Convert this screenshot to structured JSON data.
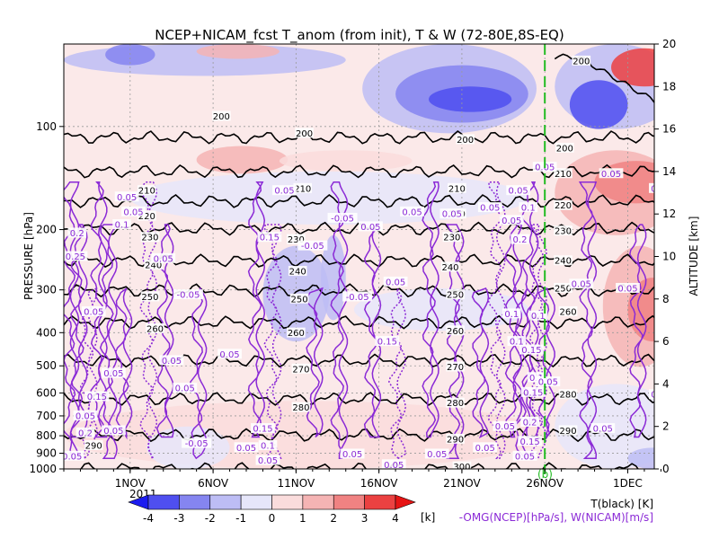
{
  "chart_data": {
    "type": "heatmap",
    "title": "NCEP+NICAM_fcst T_anom (from init), T & W  (72-80E,8S-EQ)",
    "ylabel": "PRESSURE [hPa]",
    "ylabel_right": "ALTITUDE [km]",
    "x_ticks": [
      "1NOV",
      "6NOV",
      "11NOV",
      "16NOV",
      "21NOV",
      "26NOV",
      "1DEC"
    ],
    "x_year": "2011",
    "x_day_range": [
      28,
      60
    ],
    "x_tick_days": [
      32,
      37,
      42,
      47,
      52,
      57,
      62
    ],
    "forecast_start_day": 57.0,
    "y_pressure_ticks": [
      100,
      200,
      300,
      400,
      500,
      600,
      700,
      800,
      900,
      1000
    ],
    "y_pressure_tick_labels": [
      "100",
      "200",
      "300",
      "400",
      "500",
      "600",
      "700",
      "800",
      "900",
      "1000"
    ],
    "y_altitude_ticks": [
      0,
      2,
      4,
      6,
      8,
      10,
      12,
      14,
      16,
      18,
      20
    ],
    "y_altitude_range": [
      0,
      20
    ],
    "colorbar": {
      "levels": [
        -4,
        -3,
        -2,
        -1,
        0,
        1,
        2,
        3,
        4
      ],
      "tick_labels": [
        "-4",
        "-3",
        "-2",
        "-1",
        "0",
        "1",
        "2",
        "3",
        "4"
      ],
      "colors": [
        "#1c1cf0",
        "#4f4ff0",
        "#8585f0",
        "#bdbdf5",
        "#e6e6fa",
        "#fadcdc",
        "#f5b4b4",
        "#f08282",
        "#eb4141",
        "#e61414"
      ],
      "unit": "[k]"
    },
    "legend": {
      "temp": "T(black) [K]",
      "wind": "-OMG(NCEP)[hPa/s], W(NICAM)[m/s]",
      "mark": "(b)"
    },
    "temperature_contours": [
      {
        "value": 200,
        "alt": 15.6,
        "label": "200"
      },
      {
        "value": 210,
        "alt": 14.0,
        "label": "210"
      },
      {
        "value": 220,
        "alt": 12.6,
        "label": "220"
      },
      {
        "value": 230,
        "alt": 11.3,
        "label": "230"
      },
      {
        "value": 240,
        "alt": 9.8,
        "label": "240"
      },
      {
        "value": 250,
        "alt": 8.4,
        "label": "250"
      },
      {
        "value": 260,
        "alt": 6.9,
        "label": "260"
      },
      {
        "value": 270,
        "alt": 5.1,
        "label": "270"
      },
      {
        "value": 280,
        "alt": 3.3,
        "label": "280"
      },
      {
        "value": 290,
        "alt": 1.6,
        "label": "290"
      },
      {
        "value": 300,
        "alt": 0.0,
        "label": "300"
      }
    ],
    "temperature_contour_labels": [
      {
        "text": "200",
        "day": 37.5,
        "alt": 16.6
      },
      {
        "text": "200",
        "day": 42.5,
        "alt": 15.8
      },
      {
        "text": "200",
        "day": 52.2,
        "alt": 15.5
      },
      {
        "text": "200",
        "day": 58.2,
        "alt": 15.1
      },
      {
        "text": "200",
        "day": 59.2,
        "alt": 19.2
      },
      {
        "text": "210",
        "day": 33.0,
        "alt": 13.1
      },
      {
        "text": "210",
        "day": 42.4,
        "alt": 13.2
      },
      {
        "text": "210",
        "day": 51.7,
        "alt": 13.2
      },
      {
        "text": "210",
        "day": 58.1,
        "alt": 13.9
      },
      {
        "text": "220",
        "day": 33.0,
        "alt": 11.9
      },
      {
        "text": "220",
        "day": 51.7,
        "alt": 12.0
      },
      {
        "text": "220",
        "day": 58.1,
        "alt": 12.4
      },
      {
        "text": "230",
        "day": 33.2,
        "alt": 10.9
      },
      {
        "text": "230",
        "day": 42.0,
        "alt": 10.8
      },
      {
        "text": "230",
        "day": 51.4,
        "alt": 10.9
      },
      {
        "text": "230",
        "day": 58.1,
        "alt": 11.2
      },
      {
        "text": "240",
        "day": 33.4,
        "alt": 9.6
      },
      {
        "text": "240",
        "day": 42.1,
        "alt": 9.3
      },
      {
        "text": "240",
        "day": 51.3,
        "alt": 9.5
      },
      {
        "text": "240",
        "day": 58.1,
        "alt": 9.8
      },
      {
        "text": "250",
        "day": 33.2,
        "alt": 8.1
      },
      {
        "text": "250",
        "day": 42.2,
        "alt": 8.0
      },
      {
        "text": "250",
        "day": 51.6,
        "alt": 8.2
      },
      {
        "text": "250",
        "day": 58.1,
        "alt": 8.5
      },
      {
        "text": "260",
        "day": 33.5,
        "alt": 6.6
      },
      {
        "text": "260",
        "day": 42.0,
        "alt": 6.4
      },
      {
        "text": "260",
        "day": 51.6,
        "alt": 6.5
      },
      {
        "text": "260",
        "day": 58.4,
        "alt": 7.4
      },
      {
        "text": "270",
        "day": 42.3,
        "alt": 4.7
      },
      {
        "text": "270",
        "day": 51.6,
        "alt": 4.8
      },
      {
        "text": "280",
        "day": 42.3,
        "alt": 2.9
      },
      {
        "text": "280",
        "day": 51.6,
        "alt": 3.1
      },
      {
        "text": "280",
        "day": 58.4,
        "alt": 3.5
      },
      {
        "text": "290",
        "day": 29.8,
        "alt": 1.1
      },
      {
        "text": "290",
        "day": 51.6,
        "alt": 1.4
      },
      {
        "text": "290",
        "day": 58.4,
        "alt": 1.8
      },
      {
        "text": "300",
        "day": 52.0,
        "alt": 0.1
      }
    ],
    "wind_contour_labels": [
      {
        "text": "0.05",
        "day": 31.8,
        "alt": 12.8
      },
      {
        "text": "0.05",
        "day": 32.2,
        "alt": 12.1
      },
      {
        "text": "0.1",
        "day": 31.5,
        "alt": 11.5
      },
      {
        "text": "0.2",
        "day": 28.8,
        "alt": 11.1
      },
      {
        "text": "0.25",
        "day": 28.7,
        "alt": 10.0
      },
      {
        "text": "0.05",
        "day": 29.8,
        "alt": 7.4
      },
      {
        "text": "0.05",
        "day": 34.0,
        "alt": 9.9
      },
      {
        "text": "-0.05",
        "day": 35.5,
        "alt": 8.2
      },
      {
        "text": "0.05",
        "day": 41.3,
        "alt": 13.1
      },
      {
        "text": "0.15",
        "day": 40.4,
        "alt": 10.9
      },
      {
        "text": "-0.05",
        "day": 43.0,
        "alt": 10.5
      },
      {
        "text": "-0.05",
        "day": 44.8,
        "alt": 11.8
      },
      {
        "text": "0.05",
        "day": 46.5,
        "alt": 11.4
      },
      {
        "text": "0.05",
        "day": 49.0,
        "alt": 12.1
      },
      {
        "text": "0.05",
        "day": 51.4,
        "alt": 12.0
      },
      {
        "text": "0.05",
        "day": 53.7,
        "alt": 12.3
      },
      {
        "text": "0.05",
        "day": 55.4,
        "alt": 13.1
      },
      {
        "text": "0.05",
        "day": 57.0,
        "alt": 14.2
      },
      {
        "text": "-0.05",
        "day": 45.7,
        "alt": 8.1
      },
      {
        "text": "0.05",
        "day": 48.0,
        "alt": 8.8
      },
      {
        "text": "0.05",
        "day": 38.0,
        "alt": 5.4
      },
      {
        "text": "0.05",
        "day": 34.5,
        "alt": 5.1
      },
      {
        "text": "0.05",
        "day": 31.0,
        "alt": 4.5
      },
      {
        "text": "0.05",
        "day": 35.3,
        "alt": 3.8
      },
      {
        "text": "0.15",
        "day": 30.0,
        "alt": 3.4
      },
      {
        "text": "0.15",
        "day": 47.5,
        "alt": 6.0
      },
      {
        "text": "0.05",
        "day": 39.0,
        "alt": 1.0
      },
      {
        "text": "-0.05",
        "day": 36.0,
        "alt": 1.2
      },
      {
        "text": "0.15",
        "day": 40.0,
        "alt": 1.9
      },
      {
        "text": "0.1",
        "day": 40.3,
        "alt": 1.1
      },
      {
        "text": "0.05",
        "day": 40.3,
        "alt": 0.4
      },
      {
        "text": "0.05",
        "day": 45.4,
        "alt": 0.7
      },
      {
        "text": "0.05",
        "day": 47.9,
        "alt": 0.2
      },
      {
        "text": "0.05",
        "day": 50.5,
        "alt": 0.7
      },
      {
        "text": "0.05",
        "day": 53.4,
        "alt": 1.0
      },
      {
        "text": "0.05",
        "day": 54.6,
        "alt": 2.0
      },
      {
        "text": "0.2",
        "day": 56.1,
        "alt": 2.2
      },
      {
        "text": "0.15",
        "day": 56.1,
        "alt": 1.3
      },
      {
        "text": "0.05",
        "day": 55.8,
        "alt": 0.6
      },
      {
        "text": "0.1",
        "day": 55.3,
        "alt": 6.0
      },
      {
        "text": "0.15",
        "day": 56.2,
        "alt": 5.6
      },
      {
        "text": "0.1",
        "day": 56.5,
        "alt": 4.3
      },
      {
        "text": "0.15",
        "day": 56.3,
        "alt": 3.6
      },
      {
        "text": "0.05",
        "day": 57.2,
        "alt": 4.1
      },
      {
        "text": "0.05",
        "day": 59.2,
        "alt": 8.7
      },
      {
        "text": "0.05",
        "day": 62.0,
        "alt": 8.5
      },
      {
        "text": "0.05",
        "day": 64.0,
        "alt": 13.2
      },
      {
        "text": "0.05",
        "day": 64.0,
        "alt": 3.5
      },
      {
        "text": "0.05",
        "day": 60.5,
        "alt": 1.9
      },
      {
        "text": "0.05",
        "day": 61.0,
        "alt": 13.9
      },
      {
        "text": "0.1",
        "day": 55.0,
        "alt": 7.3
      },
      {
        "text": "0.1",
        "day": 56.6,
        "alt": 7.2
      },
      {
        "text": "0.2",
        "day": 55.5,
        "alt": 10.8
      },
      {
        "text": "0.1",
        "day": 56.0,
        "alt": 12.3
      },
      {
        "text": "0.05",
        "day": 55.0,
        "alt": 11.7
      },
      {
        "text": "0.05",
        "day": 28.5,
        "alt": 0.6
      },
      {
        "text": "0.2",
        "day": 29.3,
        "alt": 1.7
      },
      {
        "text": "0.05",
        "day": 31.0,
        "alt": 1.8
      },
      {
        "text": "0.05",
        "day": 29.3,
        "alt": 2.5
      }
    ],
    "anomaly_regions": [
      {
        "d0": 28.0,
        "d1": 45.0,
        "a0": 18.5,
        "a1": 20.0,
        "v": -1.5
      },
      {
        "d0": 30.5,
        "d1": 33.5,
        "a0": 19.0,
        "a1": 20.0,
        "v": -2.5
      },
      {
        "d0": 36.0,
        "d1": 41.0,
        "a0": 19.3,
        "a1": 20.0,
        "v": 1.5
      },
      {
        "d0": 46.0,
        "d1": 56.5,
        "a0": 15.8,
        "a1": 20.0,
        "v": -1.5
      },
      {
        "d0": 48.0,
        "d1": 56.0,
        "a0": 16.3,
        "a1": 19.0,
        "v": -2.5
      },
      {
        "d0": 50.0,
        "d1": 55.0,
        "a0": 16.8,
        "a1": 18.0,
        "v": -3.5
      },
      {
        "d0": 36.0,
        "d1": 41.5,
        "a0": 13.9,
        "a1": 15.2,
        "v": 1.5
      },
      {
        "d0": 41.0,
        "d1": 49.0,
        "a0": 14.0,
        "a1": 15.0,
        "v": 0.5
      },
      {
        "d0": 32.0,
        "d1": 56.0,
        "a0": 11.5,
        "a1": 14.0,
        "v": -0.5
      },
      {
        "d0": 40.0,
        "d1": 44.0,
        "a0": 6.0,
        "a1": 10.5,
        "v": -1.5
      },
      {
        "d0": 43.5,
        "d1": 45.0,
        "a0": 7.0,
        "a1": 11.0,
        "v": -1.5
      },
      {
        "d0": 45.5,
        "d1": 56.0,
        "a0": 6.5,
        "a1": 8.5,
        "v": -0.5
      },
      {
        "d0": 28.0,
        "d1": 57.0,
        "a0": 0.0,
        "a1": 3.2,
        "v": 0.5
      },
      {
        "d0": 33.0,
        "d1": 38.0,
        "a0": 0.0,
        "a1": 2.0,
        "v": -0.5
      },
      {
        "d0": 57.6,
        "d1": 65.0,
        "a0": 16.0,
        "a1": 20.0,
        "v": -1.5
      },
      {
        "d0": 58.5,
        "d1": 62.0,
        "a0": 16.0,
        "a1": 18.3,
        "v": -3.5
      },
      {
        "d0": 61.0,
        "d1": 65.0,
        "a0": 18.0,
        "a1": 19.8,
        "v": 3.5
      },
      {
        "d0": 57.6,
        "d1": 65.0,
        "a0": 11.0,
        "a1": 15.0,
        "v": 1.5
      },
      {
        "d0": 60.0,
        "d1": 65.0,
        "a0": 12.5,
        "a1": 14.5,
        "v": 2.5
      },
      {
        "d0": 60.5,
        "d1": 65.0,
        "a0": 4.8,
        "a1": 10.5,
        "v": 1.5
      },
      {
        "d0": 62.0,
        "d1": 65.0,
        "a0": 6.0,
        "a1": 9.0,
        "v": 2.5
      },
      {
        "d0": 57.6,
        "d1": 65.0,
        "a0": 0.0,
        "a1": 4.0,
        "v": -0.5
      },
      {
        "d0": 62.0,
        "d1": 65.0,
        "a0": 0.0,
        "a1": 1.0,
        "v": -1.5
      }
    ]
  }
}
